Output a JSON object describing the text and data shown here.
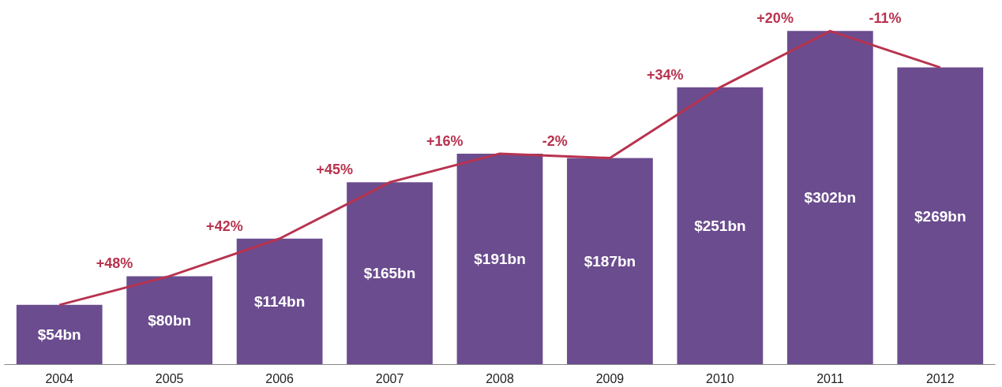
{
  "chart_data": {
    "type": "bar",
    "categories": [
      "2004",
      "2005",
      "2006",
      "2007",
      "2008",
      "2009",
      "2010",
      "2011",
      "2012"
    ],
    "series": [
      {
        "color": "#6b4c8f",
        "values": [
          54,
          80,
          114,
          165,
          191,
          187,
          251,
          302,
          269
        ],
        "value_labels": [
          "$54bn",
          "$80bn",
          "$114bn",
          "$165bn",
          "$191bn",
          "$187bn",
          "$251bn",
          "$302bn",
          "$269bn"
        ]
      },
      {
        "type": "line",
        "color": "#b8334f",
        "values": [
          54,
          80,
          114,
          165,
          191,
          187,
          251,
          302,
          269
        ]
      }
    ],
    "annotations": [
      "+48%",
      "+42%",
      "+45%",
      "+16%",
      "-2%",
      "+34%",
      "+20%",
      "-11%"
    ],
    "grid": false,
    "marker": "none",
    "line_style": "solid"
  }
}
